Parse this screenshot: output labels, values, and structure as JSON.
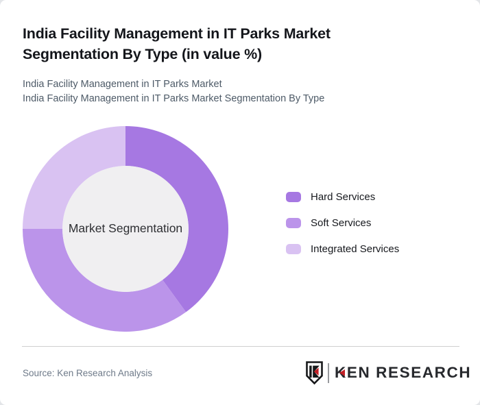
{
  "header": {
    "title": "India Facility Management in IT Parks Market Segmentation By Type (in value %)",
    "subtitle_line1": "India Facility Management in IT Parks Market",
    "subtitle_line2": "India Facility Management in IT Parks Market Segmentation By Type"
  },
  "chart_data": {
    "type": "pie",
    "variant": "donut",
    "title": "India Facility Management in IT Parks Market Segmentation By Type (in value %)",
    "center_label": "Market Segmentation",
    "categories": [
      "Hard Services",
      "Soft Services",
      "Integrated Services"
    ],
    "values": [
      40,
      35,
      25
    ],
    "unit": "value %",
    "colors": [
      "#a678e2",
      "#bb94ea",
      "#d9c2f2"
    ],
    "hole_color": "#f0eff1",
    "start_angle_deg": 0,
    "direction": "clockwise",
    "inner_radius_ratio": 0.613,
    "legend_position": "right",
    "data_labels": false
  },
  "footer": {
    "source": "Source: Ken Research Analysis",
    "logo_text": "KEN RESEARCH"
  }
}
